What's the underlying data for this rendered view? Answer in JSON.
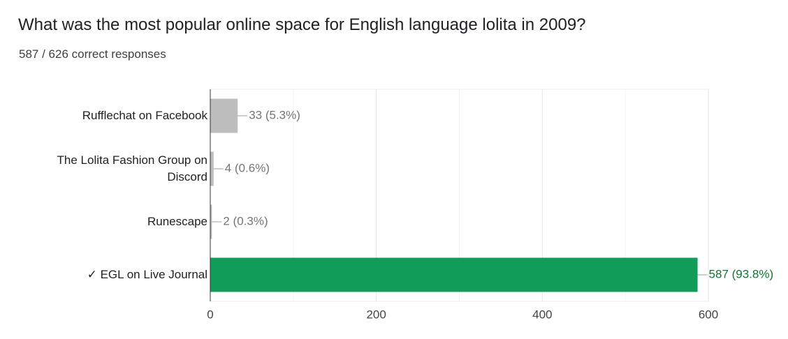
{
  "chart_data": {
    "type": "bar",
    "orientation": "horizontal",
    "title": "What was the most popular online space for English language lolita in 2009?",
    "subtitle": "587 / 626 correct responses",
    "categories": [
      "Rufflechat on Facebook",
      "The Lolita Fashion Group on Discord",
      "Runescape",
      "✓ EGL on Live Journal"
    ],
    "values": [
      33,
      4,
      2,
      587
    ],
    "value_labels": [
      "33 (5.3%)",
      "4 (0.6%)",
      "2 (0.3%)",
      "587 (93.8%)"
    ],
    "colors": [
      "#bdbdbd",
      "#bdbdbd",
      "#bdbdbd",
      "#129c5a"
    ],
    "label_colors": [
      "#757575",
      "#757575",
      "#757575",
      "#137333"
    ],
    "xlim": [
      0,
      600
    ],
    "xticks": [
      0,
      200,
      400,
      600
    ],
    "x_minor_ticks": [
      100,
      300,
      500
    ],
    "grid": true
  }
}
